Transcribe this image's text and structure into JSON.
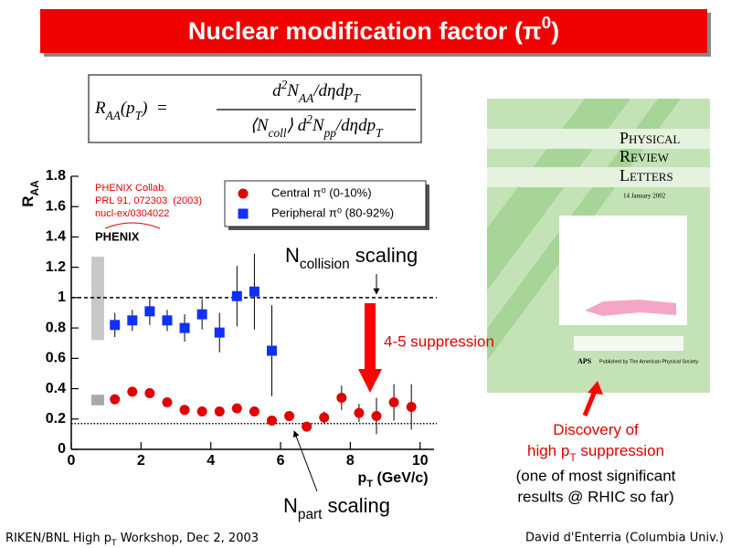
{
  "title": [
    {
      "text": "Nuclear modification factor (π"
    },
    {
      "text": "0",
      "pos": "super"
    },
    {
      "text": ")"
    }
  ],
  "formula": {
    "lhs": [
      {
        "text": "R"
      },
      {
        "text": "AA",
        "pos": "sub"
      },
      {
        "text": "(p"
      },
      {
        "text": "T",
        "pos": "sub"
      },
      {
        "text": ")  ="
      }
    ],
    "numerator": [
      {
        "text": "d"
      },
      {
        "text": "2",
        "pos": "super"
      },
      {
        "text": "N"
      },
      {
        "text": "AA",
        "pos": "sub"
      },
      {
        "text": "/dηdp"
      },
      {
        "text": "T",
        "pos": "sub"
      }
    ],
    "denominator": [
      {
        "text": "⟨N"
      },
      {
        "text": "coll",
        "pos": "sub"
      },
      {
        "text": "⟩ d"
      },
      {
        "text": "2",
        "pos": "super"
      },
      {
        "text": "N"
      },
      {
        "text": "pp",
        "pos": "sub"
      },
      {
        "text": "/dηdp"
      },
      {
        "text": "T",
        "pos": "sub"
      }
    ]
  },
  "chart_data": {
    "type": "scatter",
    "xlabel": [
      {
        "text": "p"
      },
      {
        "text": "T",
        "pos": "sub"
      },
      {
        "text": " (GeV/c)"
      }
    ],
    "ylabel": [
      {
        "text": "R"
      },
      {
        "text": "AA",
        "pos": "sub"
      }
    ],
    "xlim": [
      0,
      10.4
    ],
    "ylim": [
      0,
      1.8
    ],
    "xticks": [
      0,
      2,
      4,
      6,
      8,
      10
    ],
    "yticks": [
      0,
      0.2,
      0.4,
      0.6,
      0.8,
      1,
      1.2,
      1.4,
      1.6,
      1.8
    ],
    "series": [
      {
        "name": "Central π⁰ (0-10%)",
        "color": "#e00000",
        "marker": "circle",
        "x": [
          1.25,
          1.75,
          2.25,
          2.75,
          3.25,
          3.75,
          4.25,
          4.75,
          5.25,
          5.75,
          6.25,
          6.75,
          7.25,
          7.75,
          8.25,
          8.75,
          9.25,
          9.75
        ],
        "values": [
          0.33,
          0.38,
          0.37,
          0.31,
          0.26,
          0.25,
          0.25,
          0.27,
          0.25,
          0.19,
          0.22,
          0.15,
          0.21,
          0.34,
          0.24,
          0.22,
          0.31,
          0.28
        ],
        "errors": [
          0.03,
          0.03,
          0.03,
          0.03,
          0.03,
          0.03,
          0.03,
          0.03,
          0.03,
          0.03,
          0.03,
          0.03,
          0.04,
          0.08,
          0.06,
          0.12,
          0.12,
          0.15
        ]
      },
      {
        "name": "Peripheral π⁰ (80-92%)",
        "color": "#1030ff",
        "marker": "square",
        "x": [
          1.25,
          1.75,
          2.25,
          2.75,
          3.25,
          3.75,
          4.25,
          4.75,
          5.25,
          5.75
        ],
        "values": [
          0.82,
          0.85,
          0.91,
          0.85,
          0.8,
          0.89,
          0.77,
          1.01,
          1.04,
          0.65
        ],
        "errors": [
          0.08,
          0.07,
          0.09,
          0.07,
          0.09,
          0.1,
          0.13,
          0.2,
          0.25,
          0.3
        ]
      }
    ],
    "norm_boxes": [
      {
        "ylow": 0.72,
        "yhigh": 1.27,
        "color": "#c8c8c8"
      },
      {
        "ylow": 0.29,
        "yhigh": 0.36,
        "color": "#aaaaaa"
      }
    ],
    "reference_lines": [
      {
        "value": 1,
        "style": "dashed"
      },
      {
        "value": 0.17,
        "style": "dotted"
      }
    ],
    "collab": [
      "PHENIX Collab.",
      "PRL 91, 072303  (2003)",
      "nucl-ex/0304022"
    ],
    "logo": "PHENIX",
    "ncoll": [
      {
        "text": "N"
      },
      {
        "text": "collision",
        "pos": "sub"
      },
      {
        "text": " scaling"
      }
    ],
    "npart": [
      {
        "text": "N"
      },
      {
        "text": "part",
        "pos": "sub"
      },
      {
        "text": " scaling"
      }
    ],
    "suppression": "4-5 suppression"
  },
  "cover": {
    "title": [
      "Physical",
      "Review",
      "Letters"
    ],
    "date": "14 January 2002",
    "publisher": "Published by The American Physical Society",
    "logo": "APS"
  },
  "caption": {
    "red": [
      [
        {
          "text": "Discovery of"
        }
      ],
      [
        {
          "text": "high p"
        },
        {
          "text": "T",
          "pos": "sub"
        },
        {
          "text": " suppression"
        }
      ]
    ],
    "black": [
      "(one of most significant",
      "results @ RHIC so far)"
    ]
  },
  "footer": {
    "left": [
      {
        "text": "RIKEN/BNL High p"
      },
      {
        "text": "T",
        "pos": "sub"
      },
      {
        "text": " Workshop, Dec 2, 2003"
      }
    ],
    "right": "David d'Enterria (Columbia Univ.)"
  }
}
